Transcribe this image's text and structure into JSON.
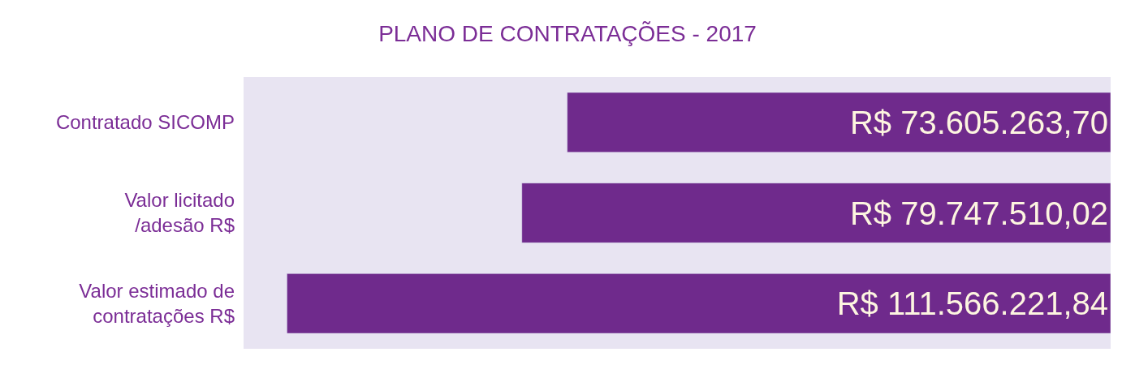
{
  "chart_data": {
    "type": "bar",
    "orientation": "horizontal",
    "title": "PLANO DE CONTRATAÇÕES - 2017",
    "categories": [
      "Contratado SICOMP",
      "Valor licitado /adesão R$",
      "Valor estimado de contratações R$"
    ],
    "values": [
      73605263.7,
      79747510.02,
      111566221.84
    ],
    "value_labels": [
      "R$ 73.605.263,70",
      "R$ 79.747.510,02",
      "R$ 111.566.221,84"
    ],
    "color": "#6f2a8c",
    "grid": false,
    "legend": false
  }
}
